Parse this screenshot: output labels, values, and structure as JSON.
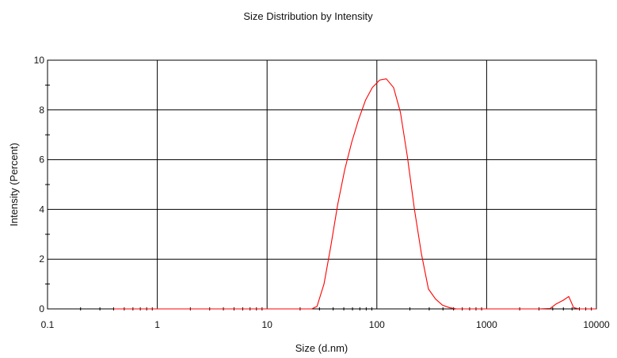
{
  "chart_data": {
    "type": "line",
    "title": "Size Distribution by Intensity",
    "xlabel": "Size (d.nm)",
    "ylabel": "Intensity (Percent)",
    "x_scale": "log",
    "xlim": [
      0.1,
      10000
    ],
    "ylim": [
      0,
      10
    ],
    "grid": true,
    "x_ticks": [
      {
        "value": 0.1,
        "label": "0.1"
      },
      {
        "value": 1,
        "label": "1"
      },
      {
        "value": 10,
        "label": "10"
      },
      {
        "value": 100,
        "label": "100"
      },
      {
        "value": 1000,
        "label": "1000"
      },
      {
        "value": 10000,
        "label": "10000"
      }
    ],
    "y_ticks": [
      {
        "value": 0,
        "label": "0"
      },
      {
        "value": 2,
        "label": "2"
      },
      {
        "value": 4,
        "label": "4"
      },
      {
        "value": 6,
        "label": "6"
      },
      {
        "value": 8,
        "label": "8"
      },
      {
        "value": 10,
        "label": "10"
      }
    ],
    "series": [
      {
        "color": "#ff0000",
        "x": [
          0.4,
          1,
          5,
          10,
          20,
          25.5,
          28.5,
          33,
          38,
          44,
          51,
          59,
          68,
          79,
          91,
          106,
          122,
          142,
          164,
          190,
          220,
          255,
          295,
          342,
          396,
          459,
          531,
          615,
          712,
          825,
          1000,
          2000,
          3000,
          3800,
          4300,
          5000,
          5600,
          6200,
          7000,
          10000
        ],
        "y": [
          0,
          0,
          0,
          0,
          0,
          0,
          0.1,
          1.0,
          2.5,
          4.2,
          5.6,
          6.7,
          7.6,
          8.4,
          8.9,
          9.2,
          9.25,
          8.9,
          7.9,
          6.1,
          4.0,
          2.2,
          0.8,
          0.4,
          0.15,
          0.05,
          0,
          0,
          0,
          0,
          0,
          0,
          0,
          0.02,
          0.2,
          0.35,
          0.5,
          0.05,
          0,
          0
        ]
      }
    ]
  }
}
